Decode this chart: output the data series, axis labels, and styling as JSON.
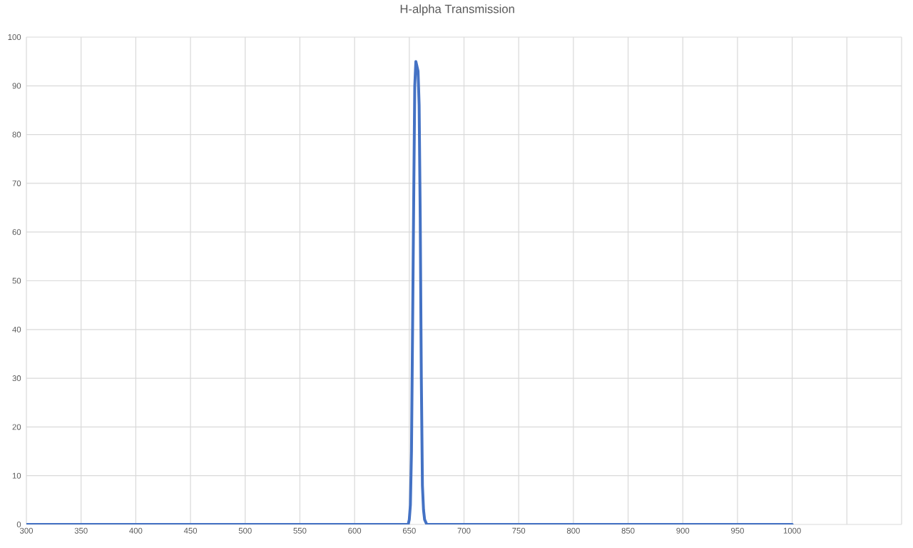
{
  "chart_data": {
    "type": "line",
    "title": "H-alpha Transmission",
    "x": [
      300,
      350,
      400,
      450,
      500,
      550,
      600,
      620,
      640,
      645,
      649,
      650,
      651,
      652,
      653,
      654,
      655,
      656,
      657,
      658,
      659,
      660,
      661,
      662,
      663,
      664,
      666,
      670,
      680,
      700,
      750,
      800,
      850,
      900,
      950,
      1000
    ],
    "values": [
      0,
      0,
      0,
      0,
      0,
      0,
      0,
      0,
      0,
      0,
      0,
      1,
      4,
      15,
      40,
      66,
      90,
      95,
      94,
      93,
      86,
      63,
      30,
      8,
      3,
      1,
      0,
      0,
      0,
      0,
      0,
      0,
      0,
      0,
      0,
      0
    ],
    "color": "#4472c4",
    "xlim": [
      300,
      1100
    ],
    "xticks": [
      300,
      350,
      400,
      450,
      500,
      550,
      600,
      650,
      700,
      750,
      800,
      850,
      900,
      950,
      1000,
      {
        "value": 1050,
        "label": null
      },
      {
        "value": 1100,
        "label": null
      }
    ],
    "ylim": [
      0,
      100
    ],
    "yticks": [
      0,
      10,
      20,
      30,
      40,
      50,
      60,
      70,
      80,
      90,
      100
    ],
    "grid": true,
    "marker": "none",
    "line_style": "solid"
  }
}
